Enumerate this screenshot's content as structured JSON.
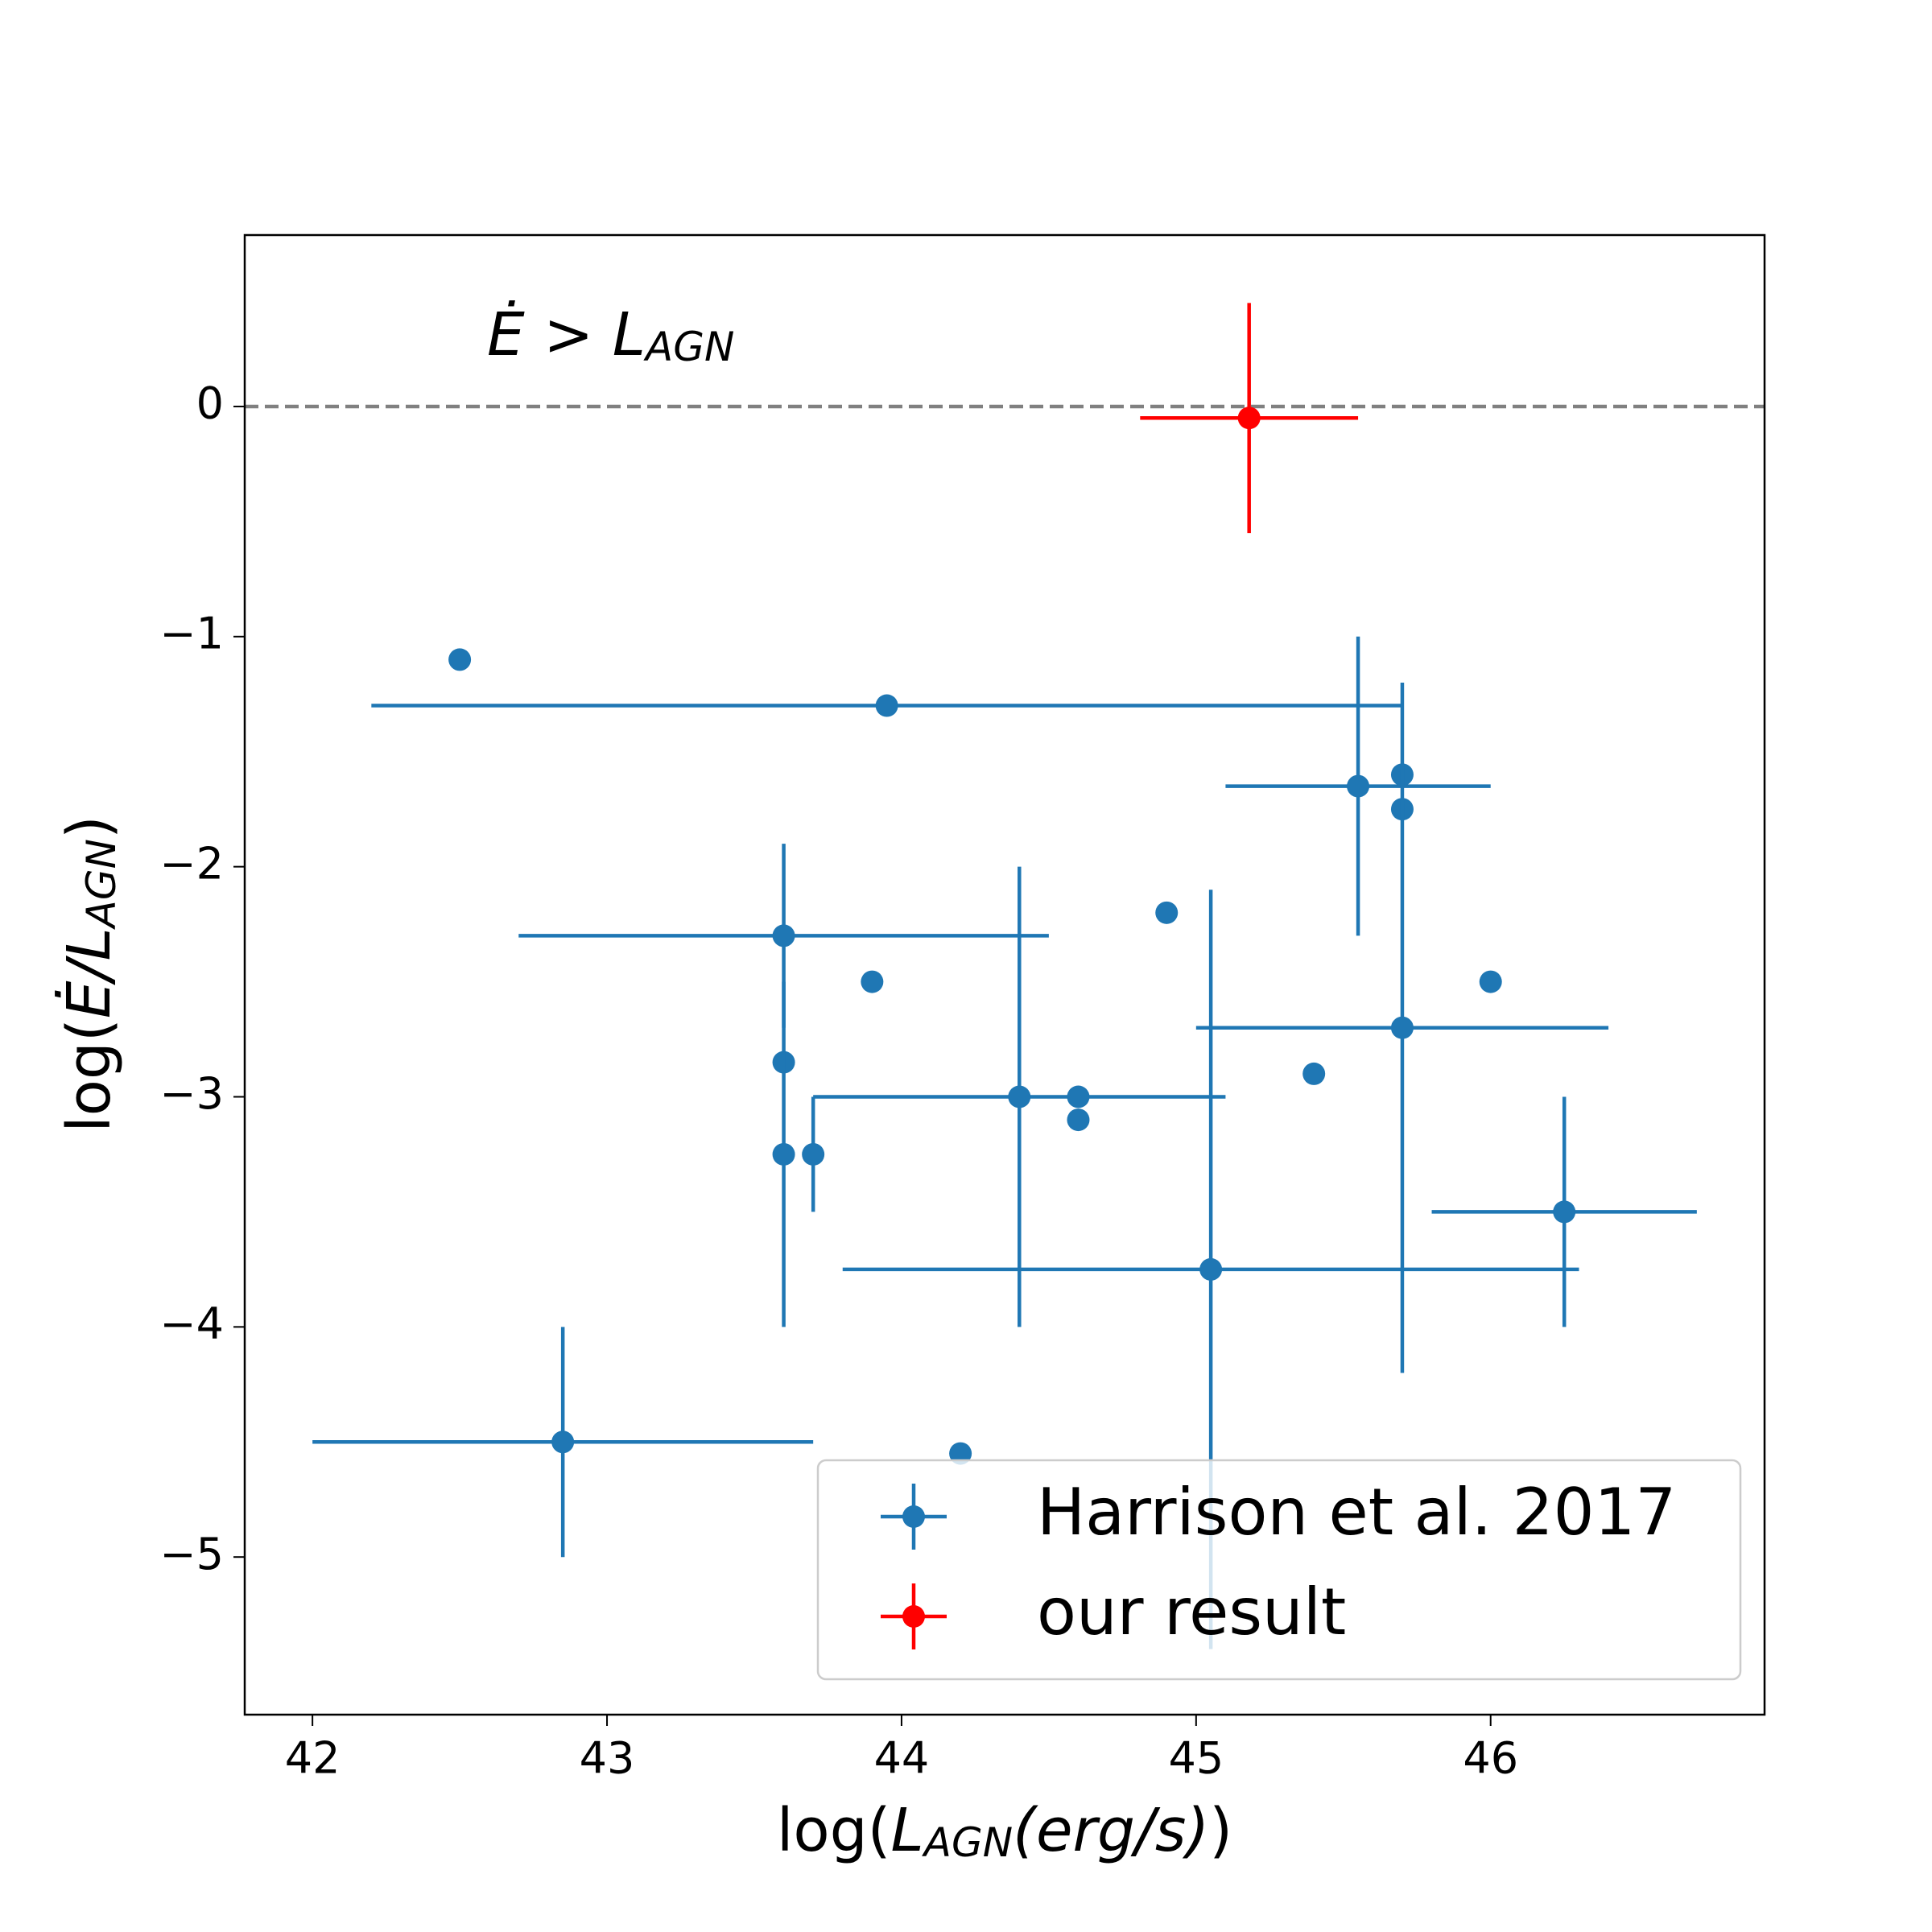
{
  "chart_data": {
    "type": "errorbar",
    "xlabel": [
      "log(",
      "L",
      "AGN",
      "(erg/s)",
      ")"
    ],
    "ylabel": [
      "log(",
      "Ė/L",
      "AGN",
      ")"
    ],
    "annotation": [
      "Ė > L",
      "AGN"
    ],
    "xlim": [
      41.77,
      46.93
    ],
    "ylim": [
      -5.685,
      0.745
    ],
    "xticks": [
      42,
      43,
      44,
      45,
      46
    ],
    "yticks": [
      0,
      {
        "value": -1,
        "label": "−1"
      },
      {
        "value": -2,
        "label": "−2"
      },
      {
        "value": -3,
        "label": "−3"
      },
      {
        "value": -4,
        "label": "−4"
      },
      {
        "value": -5,
        "label": "−5"
      }
    ],
    "hline": 0,
    "hline_color": "#808080",
    "legend": "lower right",
    "series": [
      {
        "name": "Harrison et al. 2017",
        "color": "#1f77b4",
        "x": [
          42.5,
          43.95,
          45.55,
          45.7,
          45.7,
          45.7,
          43.6,
          43.6,
          43.6,
          43.9,
          44.9,
          44.4,
          43.7,
          44.6,
          44.6,
          45.4,
          46.0,
          46.25,
          45.05,
          42.85,
          44.2
        ],
        "y": [
          -1.1,
          -1.3,
          -1.65,
          -1.6,
          -1.75,
          -2.7,
          -2.3,
          -2.85,
          -3.25,
          -2.5,
          -2.2,
          -3.0,
          -3.25,
          -3.0,
          -3.1,
          -2.9,
          -2.5,
          -3.5,
          -3.75,
          -4.5,
          -4.55
        ],
        "xerr": [
          null,
          1.75,
          0.45,
          null,
          null,
          0.7,
          0.9,
          null,
          null,
          null,
          null,
          0.7,
          null,
          null,
          null,
          null,
          null,
          0.45,
          1.25,
          0.85,
          null
        ],
        "yerr": [
          null,
          null,
          0.65,
          null,
          null,
          1.5,
          0.4,
          null,
          0.75,
          null,
          null,
          1.0,
          0.25,
          null,
          null,
          null,
          null,
          0.5,
          1.65,
          0.5,
          null
        ]
      },
      {
        "name": "our result",
        "color": "#ff0000",
        "x": [
          45.18
        ],
        "y": [
          -0.05
        ],
        "xerr": [
          0.37
        ],
        "yerr": [
          0.5
        ]
      }
    ]
  }
}
